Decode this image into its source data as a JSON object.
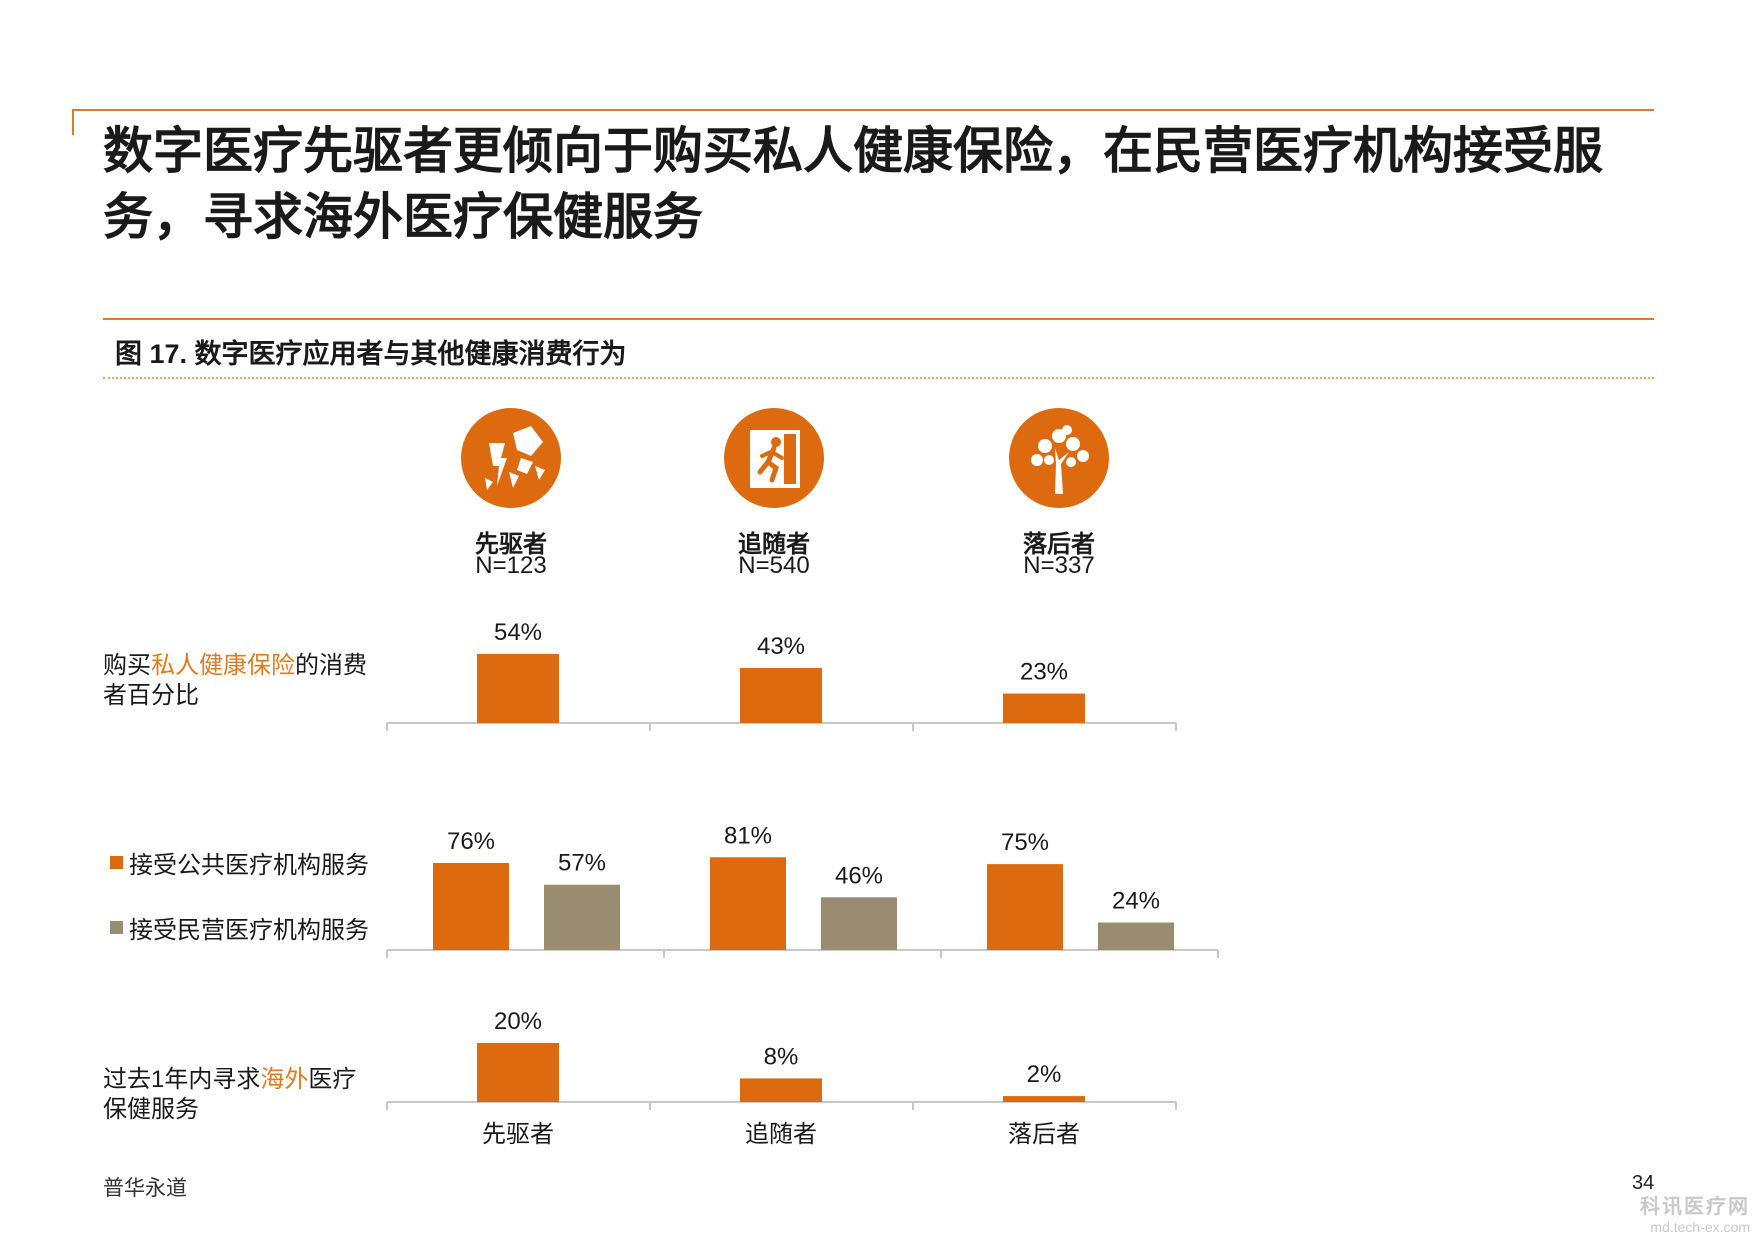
{
  "title_lines": [
    "数字医疗先驱者更倾向于购买私人健康保险，在民营医疗机构接受服",
    "务，寻求海外医疗保健服务"
  ],
  "figure_title": "图 17. 数字医疗应用者与其他健康消费行为",
  "categories_header": [
    {
      "name": "先驱者",
      "n": "N=123",
      "icon": "broken-wall-icon"
    },
    {
      "name": "追随者",
      "n": "N=540",
      "icon": "exit-running-man-icon"
    },
    {
      "name": "落后者",
      "n": "N=337",
      "icon": "tree-icon"
    }
  ],
  "row_labels": {
    "insurance": {
      "pre": "购买",
      "hl": "私人健康保险",
      "post": "的消费",
      "line2": "者百分比"
    },
    "overseas": {
      "pre": "过去1年内寻求",
      "hl": "海外",
      "post": "医疗",
      "line2": "保健服务"
    }
  },
  "legend": [
    {
      "label": "接受公共医疗机构服务",
      "color": "#de6a10"
    },
    {
      "label": "接受民营医疗机构服务",
      "color": "#998c70"
    }
  ],
  "chart_data": [
    {
      "type": "bar",
      "categories": [
        "先驱者",
        "追随者",
        "落后者"
      ],
      "values": [
        54,
        43,
        23
      ],
      "value_labels": [
        "54%",
        "43%",
        "23%"
      ]
    },
    {
      "type": "bar",
      "categories": [
        "先驱者",
        "追随者",
        "落后者"
      ],
      "series": [
        {
          "name": "接受公共医疗机构服务",
          "values": [
            76,
            81,
            75
          ],
          "value_labels": [
            "76%",
            "81%",
            "75%"
          ],
          "color": "#de6a10"
        },
        {
          "name": "接受民营医疗机构服务",
          "values": [
            57,
            46,
            24
          ],
          "value_labels": [
            "57%",
            "46%",
            "24%"
          ],
          "color": "#998c70"
        }
      ]
    },
    {
      "type": "bar",
      "categories": [
        "先驱者",
        "追随者",
        "落后者"
      ],
      "values": [
        20,
        8,
        2
      ],
      "value_labels": [
        "20%",
        "8%",
        "2%"
      ]
    }
  ],
  "colors": {
    "accent": "#de6a10",
    "secondary": "#998c70"
  },
  "footer": "普华永道",
  "page_number": "34",
  "watermark": {
    "top": "科讯医疗网",
    "bottom": "md.tech-ex.com"
  }
}
